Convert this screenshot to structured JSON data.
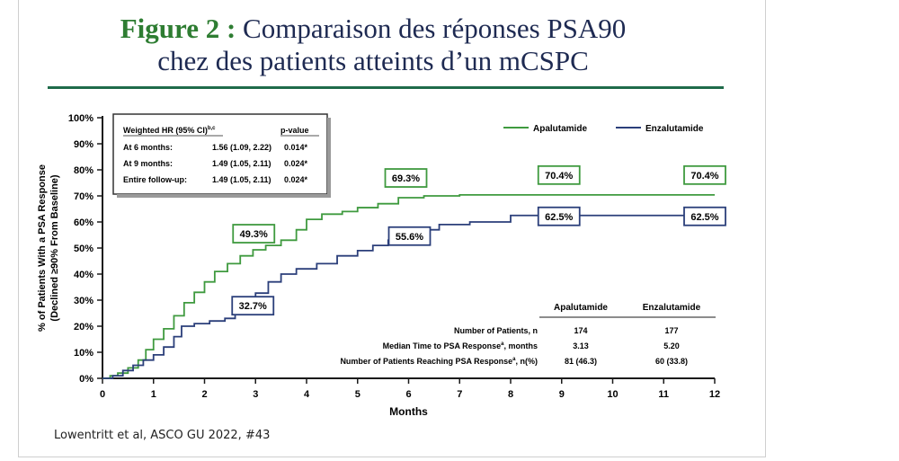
{
  "figure_label": "Figure 2 :",
  "title_line1": "Comparaison des réponses PSA90",
  "title_line2": "chez des patients atteints d’un mCSPC",
  "source": "Lowentritt et al, ASCO GU 2022, #43",
  "colors": {
    "apalutamide": "#3f9a3f",
    "enzalutamide": "#2b3f7a",
    "rule": "#1f6b4a"
  },
  "hr_table": {
    "header": [
      "Weighted HR (95% CI)",
      "b,c",
      "p-value"
    ],
    "rows": [
      {
        "label": "At 6 months:",
        "hr": "1.56 (1.09, 2.22)",
        "p": "0.014*"
      },
      {
        "label": "At 9 months:",
        "hr": "1.49 (1.05, 2.11)",
        "p": "0.024*"
      },
      {
        "label": "Entire follow-up:",
        "hr": "1.49 (1.05, 2.11)",
        "p": "0.024*"
      }
    ]
  },
  "summary_table": {
    "columns": [
      "Apalutamide",
      "Enzalutamide"
    ],
    "rows": [
      {
        "label": "Number of Patients, n",
        "values": [
          "174",
          "177"
        ]
      },
      {
        "label": "Median Time to PSA Response",
        "sup": "a",
        "suffix": ", months",
        "values": [
          "3.13",
          "5.20"
        ]
      },
      {
        "label": "Number of Patients Reaching PSA Response",
        "sup": "a",
        "suffix": ", n(%)",
        "values": [
          "81 (46.3)",
          "60 (33.8)"
        ]
      }
    ]
  },
  "chart_data": {
    "type": "line",
    "title": "",
    "xlabel": "Months",
    "ylabel": "% of Patients With a PSA Response",
    "ylabel2": "(Declined ≥90% From Baseline)",
    "xlim": [
      0,
      12
    ],
    "ylim": [
      0,
      100
    ],
    "xticks": [
      0,
      1,
      2,
      3,
      4,
      5,
      6,
      7,
      8,
      9,
      10,
      11,
      12
    ],
    "yticks": [
      "0%",
      "10%",
      "20%",
      "30%",
      "40%",
      "50%",
      "60%",
      "70%",
      "80%",
      "90%",
      "100%"
    ],
    "legend_position": "top-right",
    "series": [
      {
        "name": "Apalutamide",
        "step": true,
        "points": [
          [
            0,
            0
          ],
          [
            0.15,
            1
          ],
          [
            0.3,
            2
          ],
          [
            0.5,
            4
          ],
          [
            0.7,
            7
          ],
          [
            0.85,
            11
          ],
          [
            1,
            15
          ],
          [
            1.2,
            19
          ],
          [
            1.4,
            24
          ],
          [
            1.6,
            29
          ],
          [
            1.8,
            33
          ],
          [
            2,
            37
          ],
          [
            2.2,
            41
          ],
          [
            2.45,
            44
          ],
          [
            2.7,
            47
          ],
          [
            2.95,
            49.3
          ],
          [
            3.2,
            51
          ],
          [
            3.5,
            53
          ],
          [
            3.8,
            57
          ],
          [
            4,
            61
          ],
          [
            4.3,
            63
          ],
          [
            4.7,
            64
          ],
          [
            5,
            65.5
          ],
          [
            5.4,
            67
          ],
          [
            5.8,
            69.3
          ],
          [
            6.3,
            70
          ],
          [
            7,
            70.4
          ],
          [
            12,
            70.4
          ]
        ],
        "annotations": [
          {
            "x": 3,
            "y": 49.3,
            "label": "49.3%"
          },
          {
            "x": 6,
            "y": 69.3,
            "label": "69.3%"
          },
          {
            "x": 9,
            "y": 70.4,
            "label": "70.4%"
          },
          {
            "x": 12,
            "y": 70.4,
            "label": "70.4%"
          }
        ]
      },
      {
        "name": "Enzalutamide",
        "step": true,
        "points": [
          [
            0,
            0
          ],
          [
            0.2,
            1
          ],
          [
            0.4,
            3
          ],
          [
            0.6,
            5
          ],
          [
            0.8,
            7
          ],
          [
            1,
            9
          ],
          [
            1.2,
            12
          ],
          [
            1.4,
            16
          ],
          [
            1.55,
            20
          ],
          [
            1.8,
            21
          ],
          [
            2.1,
            22
          ],
          [
            2.4,
            23
          ],
          [
            2.6,
            25
          ],
          [
            2.8,
            28
          ],
          [
            3,
            32.7
          ],
          [
            3.25,
            37
          ],
          [
            3.5,
            40
          ],
          [
            3.8,
            42
          ],
          [
            4.2,
            44
          ],
          [
            4.6,
            47
          ],
          [
            5,
            49
          ],
          [
            5.3,
            51
          ],
          [
            5.6,
            53
          ],
          [
            5.9,
            55.6
          ],
          [
            6.2,
            57
          ],
          [
            6.6,
            59
          ],
          [
            7.2,
            60
          ],
          [
            8,
            62.5
          ],
          [
            12,
            62.5
          ]
        ],
        "annotations": [
          {
            "x": 3,
            "y": 32.7,
            "label": "32.7%"
          },
          {
            "x": 6,
            "y": 55.6,
            "label": "55.6%"
          },
          {
            "x": 9,
            "y": 62.5,
            "label": "62.5%"
          },
          {
            "x": 12,
            "y": 62.5,
            "label": "62.5%"
          }
        ]
      }
    ]
  }
}
